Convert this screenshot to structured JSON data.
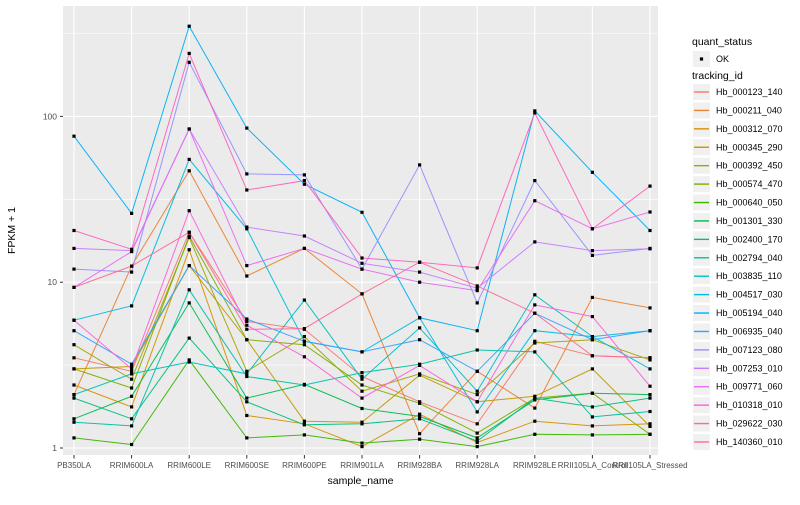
{
  "figure": {
    "y_axis_title": "FPKM + 1",
    "x_axis_title": "sample_name",
    "legend": {
      "quant_status_title": "quant_status",
      "quant_status_items": [
        "OK"
      ],
      "tracking_id_title": "tracking_id"
    },
    "colors": {
      "panel_bg": "#EBEBEB",
      "grid": "#FFFFFF",
      "tick_text": "#4D4D4D",
      "axis_text": "#000000",
      "point": "#000000",
      "legend_key_bg": "#F0F0F0"
    }
  },
  "chart_data": {
    "type": "line",
    "title": "",
    "xlabel": "sample_name",
    "ylabel": "FPKM + 1",
    "y_scale": "log10",
    "y_ticks": [
      1,
      10,
      100
    ],
    "y_minor_ticks": [
      3.162,
      31.62,
      316.2
    ],
    "ylim": [
      0.9,
      470
    ],
    "grid": true,
    "legend_position": "right",
    "point_shape": "small-black-point",
    "quant_status": [
      "OK"
    ],
    "categories": [
      "PB350LA",
      "RRIM600LA",
      "RRIM600LE",
      "RRIM600SE",
      "RRIM600PE",
      "RRIM901LA",
      "RRIM928BA",
      "RRIM928LA",
      "RRIM928LE",
      "RRII105LA_Control",
      "RRII105LA_Stressed"
    ],
    "series": [
      {
        "name": "Hb_000123_140",
        "color": "#F8766D",
        "values": [
          3.5,
          2.9,
          20,
          5.8,
          5.2,
          2.7,
          1.9,
          1.4,
          4.4,
          3.6,
          3.5
        ]
      },
      {
        "name": "Hb_000211_040",
        "color": "#EA8331",
        "values": [
          2.1,
          12.5,
          47,
          10.9,
          16,
          8.5,
          1.22,
          2.9,
          1.74,
          8.1,
          7.0
        ]
      },
      {
        "name": "Hb_000312_070",
        "color": "#D89000",
        "values": [
          2.4,
          1.77,
          15.7,
          1.57,
          1.4,
          1.02,
          1.6,
          1.08,
          1.45,
          1.36,
          1.4
        ]
      },
      {
        "name": "Hb_000345_290",
        "color": "#C09B00",
        "values": [
          3.0,
          3.1,
          12.6,
          4.5,
          1.45,
          1.43,
          2.75,
          1.9,
          2.05,
          3.0,
          1.35
        ]
      },
      {
        "name": "Hb_000392_450",
        "color": "#A3A500",
        "values": [
          4.2,
          2.6,
          18.6,
          2.9,
          4.7,
          2.2,
          2.8,
          2.1,
          4.3,
          4.5,
          3.4
        ]
      },
      {
        "name": "Hb_000574_470",
        "color": "#7CAE00",
        "values": [
          3.0,
          2.3,
          19,
          4.5,
          4.2,
          2.4,
          1.86,
          1.23,
          2.0,
          2.14,
          1.21
        ]
      },
      {
        "name": "Hb_000640_050",
        "color": "#39B600",
        "values": [
          1.15,
          1.05,
          3.4,
          1.15,
          1.2,
          1.07,
          1.13,
          1.02,
          1.21,
          1.2,
          1.21
        ]
      },
      {
        "name": "Hb_001301_330",
        "color": "#00BB4E",
        "values": [
          1.5,
          2.05,
          7.5,
          2.0,
          2.42,
          1.73,
          1.55,
          1.15,
          1.95,
          2.14,
          2.1
        ]
      },
      {
        "name": "Hb_002400_170",
        "color": "#00BF7D",
        "values": [
          2.0,
          1.5,
          4.6,
          1.9,
          1.38,
          1.4,
          1.5,
          1.1,
          2.0,
          1.77,
          2.0
        ]
      },
      {
        "name": "Hb_002794_040",
        "color": "#00C1A3",
        "values": [
          1.43,
          1.36,
          9.0,
          2.7,
          2.4,
          2.85,
          3.2,
          3.9,
          3.8,
          1.54,
          1.66
        ]
      },
      {
        "name": "Hb_003835_110",
        "color": "#00BFC4",
        "values": [
          2.1,
          2.8,
          3.3,
          2.8,
          7.8,
          2.6,
          5.3,
          2.2,
          8.4,
          4.7,
          3.0
        ]
      },
      {
        "name": "Hb_004517_030",
        "color": "#00BAE0",
        "values": [
          5.9,
          7.2,
          55,
          21,
          4.4,
          3.8,
          6.1,
          1.65,
          5.1,
          4.7,
          5.1
        ]
      },
      {
        "name": "Hb_005194_040",
        "color": "#00B0F6",
        "values": [
          76,
          26,
          350,
          85,
          39,
          26.4,
          6.1,
          5.1,
          108,
          46,
          20.5
        ]
      },
      {
        "name": "Hb_006935_040",
        "color": "#35A2FF",
        "values": [
          5.1,
          3.2,
          12.6,
          6.0,
          4.4,
          3.8,
          4.5,
          2.9,
          6.5,
          4.5,
          5.1
        ]
      },
      {
        "name": "Hb_007123_080",
        "color": "#9590FF",
        "values": [
          12,
          11.5,
          212,
          45,
          44.4,
          12,
          51,
          7.5,
          41,
          14.5,
          16
        ]
      },
      {
        "name": "Hb_007253_010",
        "color": "#C77CFF",
        "values": [
          16,
          15.5,
          84,
          21.5,
          19,
          13,
          11.5,
          9.2,
          17.5,
          15.5,
          15.9
        ]
      },
      {
        "name": "Hb_009771_060",
        "color": "#E76BF3",
        "values": [
          9.3,
          15.3,
          84,
          12.6,
          16,
          12,
          10,
          8.9,
          31,
          21,
          26.5
        ]
      },
      {
        "name": "Hb_010318_010",
        "color": "#FA62DB",
        "values": [
          5.9,
          3.0,
          27,
          5.5,
          3.55,
          2.0,
          3.15,
          1.9,
          7.3,
          6.2,
          2.36
        ]
      },
      {
        "name": "Hb_029622_030",
        "color": "#FF62BC",
        "values": [
          20.5,
          15.8,
          240,
          36,
          41,
          14,
          13.2,
          12.2,
          105,
          21,
          38
        ]
      },
      {
        "name": "Hb_140360_010",
        "color": "#FF6A98",
        "values": [
          9.3,
          12.5,
          20,
          5.2,
          5.25,
          8.5,
          13.2,
          9.5,
          6.5,
          3.6,
          3.5
        ]
      }
    ]
  }
}
